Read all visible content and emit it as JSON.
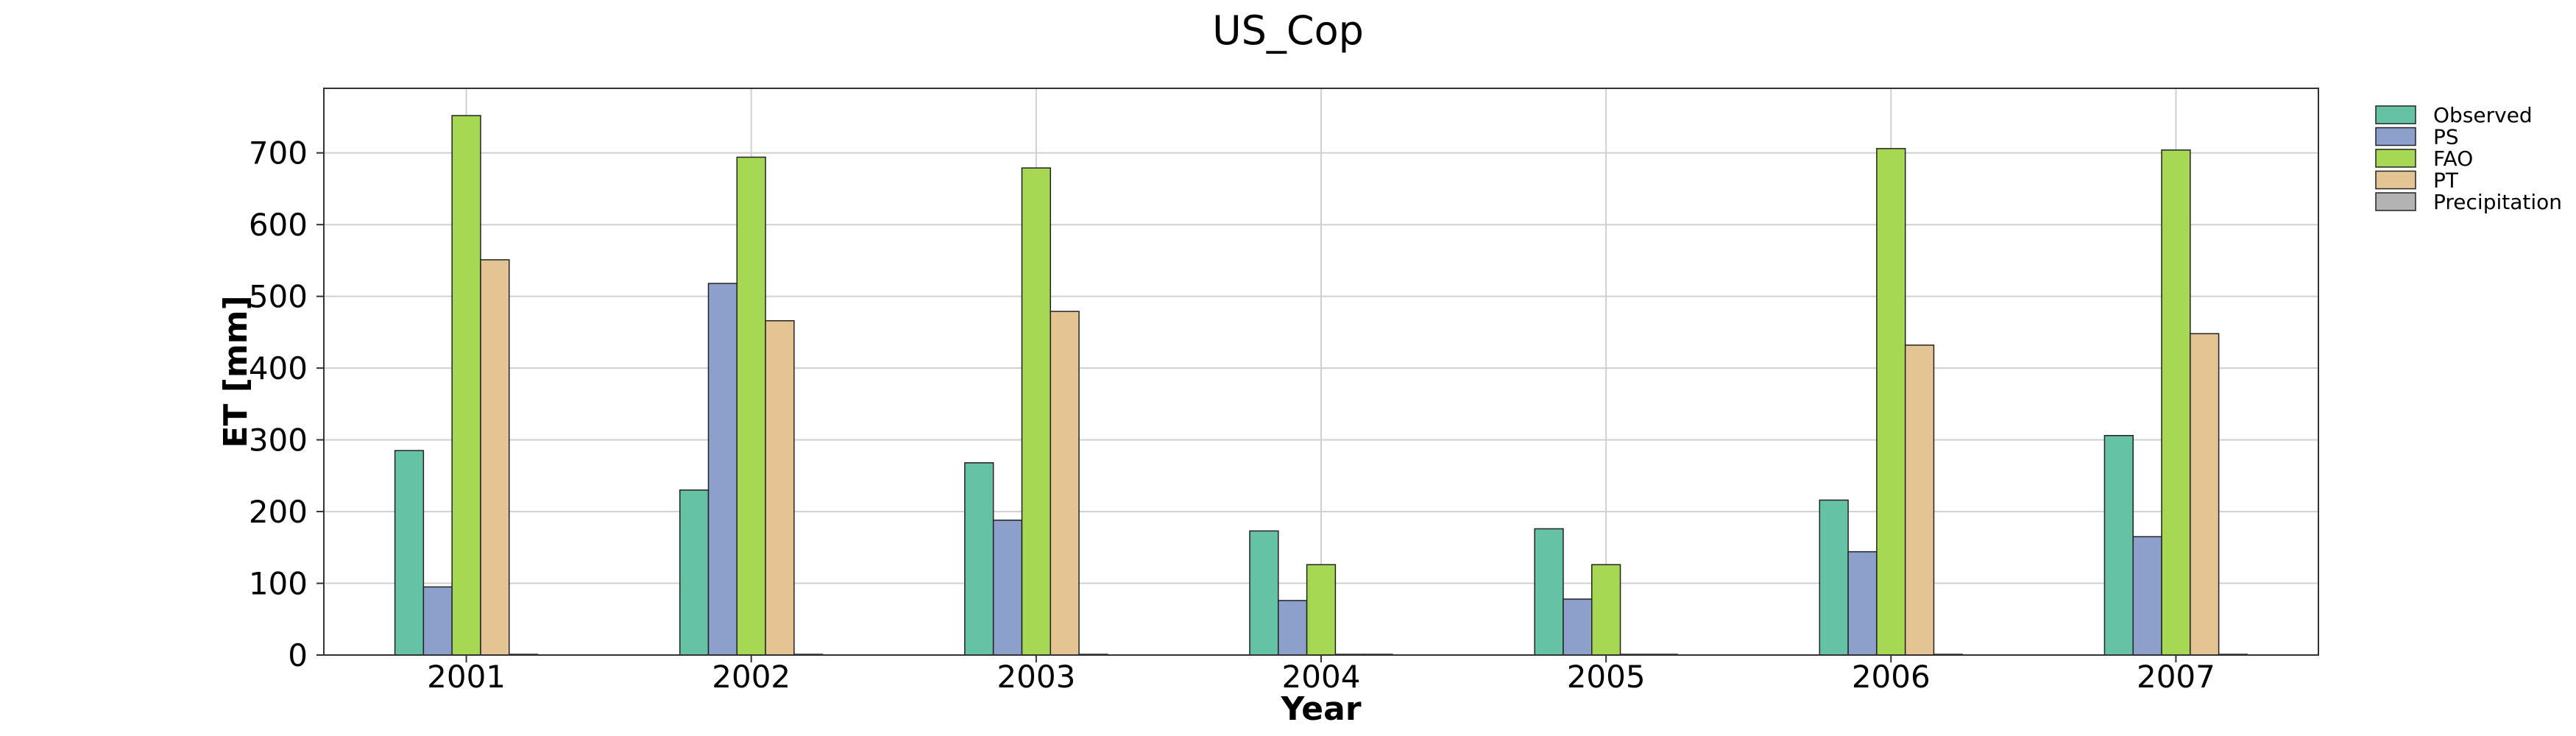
{
  "chart_data": {
    "type": "bar",
    "title": "US_Cop",
    "xlabel": "Year",
    "ylabel": "ET [mm]",
    "categories": [
      "2001",
      "2002",
      "2003",
      "2004",
      "2005",
      "2006",
      "2007"
    ],
    "ylim": [
      0,
      790
    ],
    "yticks": [
      0,
      100,
      200,
      300,
      400,
      500,
      600,
      700
    ],
    "grid": true,
    "legend_position": "outside-top-right",
    "series": [
      {
        "name": "Observed",
        "color": "#66c2a5",
        "values": [
          285,
          230,
          268,
          173,
          176,
          216,
          306
        ]
      },
      {
        "name": "PS",
        "color": "#8da0cb",
        "values": [
          95,
          518,
          188,
          76,
          78,
          144,
          165
        ]
      },
      {
        "name": "FAO",
        "color": "#a6d854",
        "values": [
          752,
          694,
          679,
          126,
          126,
          706,
          704
        ]
      },
      {
        "name": "PT",
        "color": "#e5c494",
        "values": [
          551,
          466,
          479,
          0,
          0,
          432,
          448
        ]
      },
      {
        "name": "Precipitation",
        "color": "#b3b3b3",
        "values": [
          0,
          0,
          0,
          0,
          0,
          0,
          0
        ]
      }
    ]
  }
}
